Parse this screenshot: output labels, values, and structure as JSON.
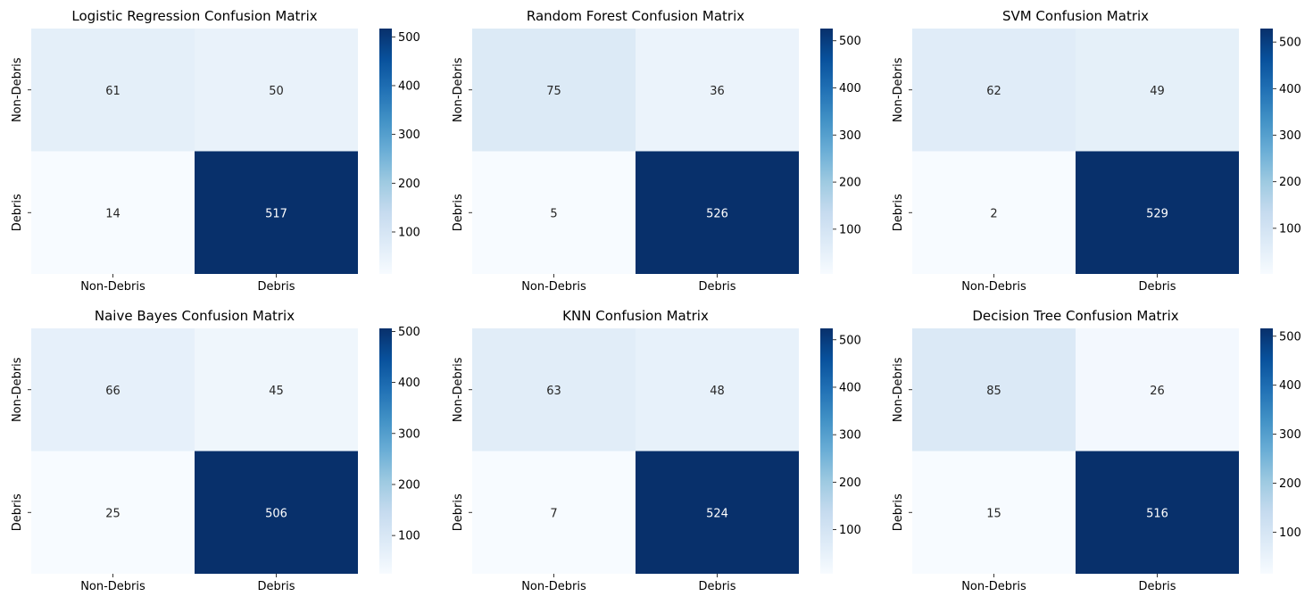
{
  "chart_data": [
    {
      "type": "heatmap",
      "title": "Logistic Regression Confusion Matrix",
      "x_categories": [
        "Non-Debris",
        "Debris"
      ],
      "y_categories": [
        "Non-Debris",
        "Debris"
      ],
      "values": [
        [
          61,
          50
        ],
        [
          14,
          517
        ]
      ],
      "colormap": "Blues",
      "colorbar_ticks": [
        100,
        200,
        300,
        400,
        500
      ]
    },
    {
      "type": "heatmap",
      "title": "Random Forest Confusion Matrix",
      "x_categories": [
        "Non-Debris",
        "Debris"
      ],
      "y_categories": [
        "Non-Debris",
        "Debris"
      ],
      "values": [
        [
          75,
          36
        ],
        [
          5,
          526
        ]
      ],
      "colormap": "Blues",
      "colorbar_ticks": [
        100,
        200,
        300,
        400,
        500
      ]
    },
    {
      "type": "heatmap",
      "title": "SVM Confusion Matrix",
      "x_categories": [
        "Non-Debris",
        "Debris"
      ],
      "y_categories": [
        "Non-Debris",
        "Debris"
      ],
      "values": [
        [
          62,
          49
        ],
        [
          2,
          529
        ]
      ],
      "colormap": "Blues",
      "colorbar_ticks": [
        100,
        200,
        300,
        400,
        500
      ]
    },
    {
      "type": "heatmap",
      "title": "Naive Bayes Confusion Matrix",
      "x_categories": [
        "Non-Debris",
        "Debris"
      ],
      "y_categories": [
        "Non-Debris",
        "Debris"
      ],
      "values": [
        [
          66,
          45
        ],
        [
          25,
          506
        ]
      ],
      "colormap": "Blues",
      "colorbar_ticks": [
        100,
        200,
        300,
        400,
        500
      ]
    },
    {
      "type": "heatmap",
      "title": "KNN Confusion Matrix",
      "x_categories": [
        "Non-Debris",
        "Debris"
      ],
      "y_categories": [
        "Non-Debris",
        "Debris"
      ],
      "values": [
        [
          63,
          48
        ],
        [
          7,
          524
        ]
      ],
      "colormap": "Blues",
      "colorbar_ticks": [
        100,
        200,
        300,
        400,
        500
      ]
    },
    {
      "type": "heatmap",
      "title": "Decision Tree Confusion Matrix",
      "x_categories": [
        "Non-Debris",
        "Debris"
      ],
      "y_categories": [
        "Non-Debris",
        "Debris"
      ],
      "values": [
        [
          85,
          26
        ],
        [
          15,
          516
        ]
      ],
      "colormap": "Blues",
      "colorbar_ticks": [
        100,
        200,
        300,
        400,
        500
      ]
    }
  ]
}
